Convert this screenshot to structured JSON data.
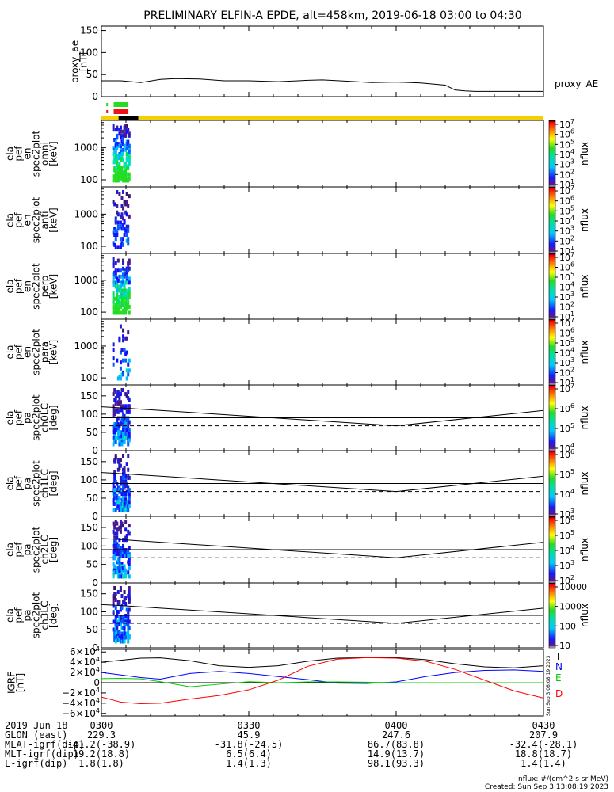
{
  "title": "PRELIMINARY ELFIN-A EPDE, alt=458km, 2019-06-18 03:00 to 04:30",
  "colors": {
    "axis": "#000000",
    "bar_yellow": "#f5d000",
    "bar_black": "#000000",
    "bar_green": "#22dd22",
    "bar_red": "#ee1111",
    "red": "#ff0000",
    "green": "#00cc00",
    "blue": "#0000ff"
  },
  "chart_data": [
    {
      "id": "proxy_ae",
      "type": "line",
      "name": "proxy_AE",
      "ylabel_lines": [
        "proxy_ae",
        "[nT]"
      ],
      "ylim": [
        0,
        160
      ],
      "yticks": [
        0,
        50,
        100,
        150
      ],
      "x_minutes": [
        0,
        4,
        8,
        12,
        15,
        20,
        25,
        30,
        36,
        42,
        45,
        50,
        55,
        60,
        65,
        70,
        72,
        74,
        76,
        80,
        85,
        90
      ],
      "values": [
        36,
        36,
        32,
        39,
        41,
        40,
        36,
        36,
        34,
        37,
        38,
        35,
        32,
        33,
        31,
        26,
        15,
        13,
        12,
        12,
        12,
        12
      ]
    },
    {
      "id": "flag_bars",
      "type": "bar",
      "green_flag_minutes": [
        2.5,
        5.5
      ],
      "red_flag_minutes": [
        2.5,
        5.5
      ],
      "tick_marks_minutes": [
        1.0
      ],
      "black_bar_minutes": [
        3.5,
        7.5
      ]
    },
    {
      "id": "spec_omni",
      "type": "heatmap",
      "ylabel_lines": [
        "ela",
        "pef",
        "en",
        "spec2plot",
        "omni",
        "[keV]"
      ],
      "y_scale": "log",
      "ylim": [
        60,
        7000
      ],
      "yticks": [
        "100",
        "1000"
      ],
      "zlabel": "nflux",
      "zrange_exp": [
        1,
        7
      ],
      "zticks": [
        "10^1",
        "10^2",
        "10^3",
        "10^4",
        "10^5",
        "10^6",
        "10^7"
      ]
    },
    {
      "id": "spec_anti",
      "type": "heatmap",
      "ylabel_lines": [
        "ela",
        "pef",
        "en",
        "spec2plot",
        "anti",
        "[keV]"
      ],
      "y_scale": "log",
      "ylim": [
        60,
        7000
      ],
      "yticks": [
        "100",
        "1000"
      ],
      "zlabel": "nflux",
      "zrange_exp": [
        1,
        7
      ],
      "zticks": [
        "10^1",
        "10^2",
        "10^3",
        "10^4",
        "10^5",
        "10^6",
        "10^7"
      ]
    },
    {
      "id": "spec_perp",
      "type": "heatmap",
      "ylabel_lines": [
        "ela",
        "pef",
        "en",
        "spec2plot",
        "perp",
        "[keV]"
      ],
      "y_scale": "log",
      "ylim": [
        60,
        7000
      ],
      "yticks": [
        "100",
        "1000"
      ],
      "zlabel": "nflux",
      "zrange_exp": [
        1,
        7
      ],
      "zticks": [
        "10^1",
        "10^2",
        "10^3",
        "10^4",
        "10^5",
        "10^6",
        "10^7"
      ]
    },
    {
      "id": "spec_para",
      "type": "heatmap",
      "ylabel_lines": [
        "ela",
        "pef",
        "en",
        "spec2plot",
        "para",
        "[keV]"
      ],
      "y_scale": "log",
      "ylim": [
        60,
        7000
      ],
      "yticks": [
        "100",
        "1000"
      ],
      "zlabel": "nflux",
      "zrange_exp": [
        1,
        7
      ],
      "zticks": [
        "10^1",
        "10^2",
        "10^3",
        "10^4",
        "10^5",
        "10^6",
        "10^7"
      ]
    },
    {
      "id": "pa_ch0",
      "type": "heatmap",
      "ylabel_lines": [
        "ela",
        "pef",
        "pa",
        "spec2plot",
        "ch0LC",
        "[deg]"
      ],
      "ylim": [
        0,
        180
      ],
      "yticks": [
        "0",
        "50",
        "100",
        "150"
      ],
      "line_x_minutes": [
        0,
        3,
        60,
        90
      ],
      "line_values": [
        120,
        118,
        68,
        110
      ],
      "solid_level": 90,
      "dashed_level": 68,
      "zlabel": "nflux",
      "zrange_exp": [
        4,
        7
      ],
      "zticks": [
        "10^4",
        "10^5",
        "10^6",
        "10^7"
      ]
    },
    {
      "id": "pa_ch1",
      "type": "heatmap",
      "ylabel_lines": [
        "ela",
        "pef",
        "pa",
        "spec2plot",
        "ch1LC",
        "[deg]"
      ],
      "ylim": [
        0,
        180
      ],
      "yticks": [
        "0",
        "50",
        "100",
        "150"
      ],
      "line_x_minutes": [
        0,
        3,
        60,
        90
      ],
      "line_values": [
        120,
        118,
        68,
        110
      ],
      "solid_level": 90,
      "dashed_level": 68,
      "zlabel": "nflux",
      "zrange_exp": [
        3,
        6
      ],
      "zticks": [
        "10^3",
        "10^4",
        "10^5",
        "10^6"
      ]
    },
    {
      "id": "pa_ch2",
      "type": "heatmap",
      "ylabel_lines": [
        "ela",
        "pef",
        "pa",
        "spec2plot",
        "ch2LC",
        "[deg]"
      ],
      "ylim": [
        0,
        180
      ],
      "yticks": [
        "0",
        "50",
        "100",
        "150"
      ],
      "line_x_minutes": [
        0,
        3,
        60,
        90
      ],
      "line_values": [
        120,
        118,
        68,
        110
      ],
      "solid_level": 90,
      "dashed_level": 68,
      "zlabel": "nflux",
      "zrange_exp": [
        2,
        6
      ],
      "zticks": [
        "10^2",
        "10^3",
        "10^4",
        "10^5",
        "10^6"
      ]
    },
    {
      "id": "pa_ch3",
      "type": "heatmap",
      "ylabel_lines": [
        "ela",
        "pef",
        "pa",
        "spec2plot",
        "ch3LC",
        "[deg]"
      ],
      "ylim": [
        0,
        180
      ],
      "yticks": [
        "0",
        "50",
        "100",
        "150"
      ],
      "line_x_minutes": [
        0,
        3,
        60,
        90
      ],
      "line_values": [
        120,
        118,
        68,
        110
      ],
      "solid_level": 90,
      "dashed_level": 68,
      "zlabel": "nflux",
      "zrange_exp": [
        1,
        4
      ],
      "zticks": [
        "10",
        "100",
        "1000",
        "10000"
      ]
    },
    {
      "id": "igrf",
      "type": "line",
      "ylabel_lines": [
        "IGRF",
        "[nT]"
      ],
      "ylim": [
        -65000,
        65000
      ],
      "ytick_values": [
        -60000,
        -40000,
        -20000,
        0,
        20000,
        40000,
        60000
      ],
      "ytick_mantissa": [
        "−6",
        "−4",
        "−2",
        "0",
        "2",
        "4",
        "6"
      ],
      "ytick_times": "×10",
      "ytick_exponent": "4",
      "x_minutes": [
        0,
        4,
        8,
        12,
        18,
        24,
        30,
        36,
        42,
        48,
        54,
        60,
        66,
        72,
        78,
        84,
        90
      ],
      "series": [
        {
          "name": "T",
          "color": "#000000",
          "values": [
            40000,
            44000,
            48000,
            48500,
            43000,
            33000,
            30000,
            33000,
            42000,
            48000,
            49000,
            49000,
            45000,
            37000,
            31000,
            29000,
            33000
          ]
        },
        {
          "name": "N",
          "color": "#0000ff",
          "values": [
            20000,
            15000,
            10000,
            7000,
            18000,
            22000,
            18000,
            12000,
            6000,
            -1000,
            -1500,
            1500,
            12000,
            20000,
            24000,
            25000,
            22000
          ]
        },
        {
          "name": "E",
          "color": "#00cc00",
          "values": [
            8000,
            8500,
            7500,
            2000,
            -8000,
            -3000,
            2000,
            0,
            1500,
            1500,
            1000,
            0,
            0,
            0,
            0,
            0,
            0
          ]
        },
        {
          "name": "D",
          "color": "#ff0000",
          "values": [
            -28000,
            -38000,
            -41000,
            -40000,
            -32000,
            -25000,
            -14000,
            5000,
            32000,
            46000,
            49000,
            48000,
            42000,
            26000,
            5000,
            -16000,
            -30000
          ]
        }
      ],
      "legend": [
        "T",
        "N",
        "E",
        "D"
      ]
    }
  ],
  "timeaxis": {
    "row_labels": [
      "2019 Jun 18",
      "GLON (east)",
      "MLAT-igrf(dip)",
      "MLT-igrf(dip)",
      "L-igrf(dip)"
    ],
    "ticks": [
      {
        "minute": 0,
        "values": [
          "0300",
          "229.3",
          "-41.2(-38.9)",
          "19.2(18.8)",
          "1.8(1.8)"
        ]
      },
      {
        "minute": 30,
        "values": [
          "0330",
          "45.9",
          "-31.8(-24.5)",
          "6.5(6.4)",
          "1.4(1.3)"
        ]
      },
      {
        "minute": 60,
        "values": [
          "0400",
          "247.6",
          "86.7(83.8)",
          "14.9(13.7)",
          "98.1(93.3)"
        ]
      },
      {
        "minute": 90,
        "values": [
          "0430",
          "207.9",
          "-32.4(-28.1)",
          "18.8(18.7)",
          "1.4(1.4)"
        ]
      }
    ]
  },
  "footer": {
    "units": "nflux: #/(cm^2 s sr MeV)",
    "created": "Created: Sun Sep  3 13:08:19 2023",
    "rotated_note": "Sun Sep  3 08:08:19 2023"
  }
}
